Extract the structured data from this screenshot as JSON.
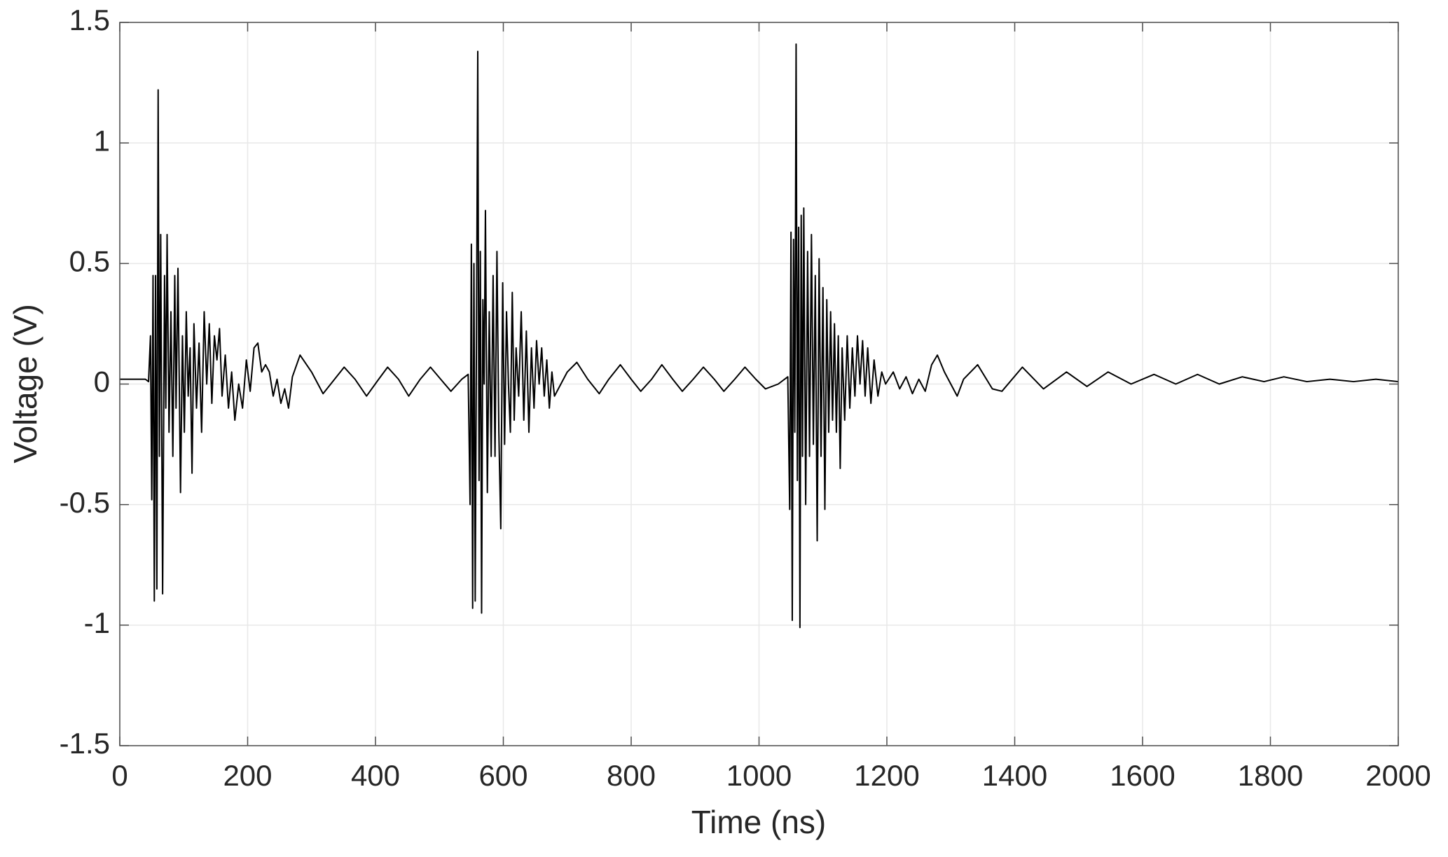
{
  "chart_data": {
    "type": "line",
    "x_label": "Time (ns)",
    "y_label": "Voltage (V)",
    "xlim": [
      0,
      2000
    ],
    "xticks": [
      0,
      200,
      400,
      600,
      800,
      1000,
      1200,
      1400,
      1600,
      1800,
      2000
    ],
    "ylim": [
      -1.5,
      1.5
    ],
    "yticks": [
      -1.5,
      -1,
      -0.5,
      0,
      0.5,
      1,
      1.5
    ],
    "grid": true,
    "color": "#000000",
    "x": [
      0,
      40,
      45,
      48,
      50,
      52,
      54,
      56,
      58,
      60,
      62,
      64,
      67,
      70,
      72,
      74,
      77,
      80,
      83,
      86,
      88,
      91,
      95,
      98,
      101,
      104,
      107,
      110,
      113,
      116,
      120,
      124,
      128,
      132,
      136,
      140,
      144,
      148,
      152,
      156,
      160,
      165,
      170,
      175,
      180,
      186,
      192,
      198,
      204,
      210,
      216,
      222,
      228,
      234,
      240,
      246,
      252,
      258,
      264,
      270,
      282,
      300,
      318,
      330,
      351,
      368,
      386,
      405,
      419,
      436,
      452,
      470,
      486,
      502,
      518,
      535,
      545,
      548,
      550,
      552,
      554,
      556,
      558,
      560,
      562,
      564,
      566,
      568,
      570,
      572,
      575,
      578,
      581,
      584,
      587,
      590,
      593,
      596,
      599,
      602,
      605,
      608,
      611,
      614,
      617,
      620,
      624,
      628,
      632,
      636,
      640,
      644,
      648,
      652,
      656,
      660,
      664,
      668,
      672,
      676,
      680,
      690,
      700,
      715,
      732,
      750,
      765,
      783,
      800,
      815,
      832,
      848,
      865,
      880,
      897,
      913,
      930,
      945,
      962,
      978,
      995,
      1010,
      1030,
      1045,
      1048,
      1050,
      1052,
      1054,
      1056,
      1058,
      1060,
      1062,
      1064,
      1066,
      1068,
      1070,
      1073,
      1076,
      1079,
      1082,
      1085,
      1088,
      1091,
      1094,
      1097,
      1100,
      1103,
      1106,
      1109,
      1112,
      1115,
      1118,
      1121,
      1124,
      1127,
      1130,
      1134,
      1138,
      1142,
      1146,
      1150,
      1154,
      1158,
      1162,
      1166,
      1170,
      1175,
      1180,
      1186,
      1192,
      1198,
      1210,
      1220,
      1230,
      1240,
      1250,
      1260,
      1270,
      1279,
      1290,
      1300,
      1310,
      1320,
      1342,
      1365,
      1380,
      1412,
      1445,
      1481,
      1513,
      1546,
      1582,
      1618,
      1652,
      1686,
      1720,
      1756,
      1790,
      1821,
      1857,
      1893,
      1930,
      1965,
      2000
    ],
    "values": [
      0.02,
      0.02,
      0.01,
      0.2,
      -0.48,
      0.45,
      -0.9,
      0.45,
      -0.85,
      1.22,
      -0.3,
      0.62,
      -0.87,
      0.45,
      -0.1,
      0.62,
      -0.2,
      0.3,
      -0.3,
      0.45,
      -0.1,
      0.48,
      -0.45,
      0.2,
      -0.2,
      0.3,
      -0.05,
      0.15,
      -0.37,
      0.25,
      -0.1,
      0.17,
      -0.2,
      0.3,
      0,
      0.25,
      -0.08,
      0.2,
      0.1,
      0.23,
      -0.05,
      0.12,
      -0.1,
      0.05,
      -0.15,
      0,
      -0.1,
      0.1,
      -0.03,
      0.15,
      0.17,
      0.05,
      0.08,
      0.05,
      -0.05,
      0.02,
      -0.08,
      -0.02,
      -0.1,
      0.03,
      0.12,
      0.05,
      -0.04,
      0,
      0.07,
      0.02,
      -0.05,
      0.02,
      0.07,
      0.02,
      -0.05,
      0.02,
      0.07,
      0.02,
      -0.03,
      0.02,
      0.04,
      -0.5,
      0.58,
      -0.93,
      0.5,
      -0.9,
      0.2,
      1.38,
      -0.4,
      0.55,
      -0.95,
      0.35,
      0,
      0.72,
      -0.45,
      0.3,
      -0.3,
      0.45,
      -0.3,
      0.55,
      -0.2,
      -0.6,
      0.42,
      -0.25,
      0.3,
      0,
      -0.2,
      0.38,
      -0.15,
      0.15,
      -0.05,
      0.3,
      -0.15,
      0.22,
      -0.2,
      0.15,
      -0.1,
      0.18,
      0,
      0.15,
      -0.05,
      0.1,
      -0.1,
      0.05,
      -0.05,
      0,
      0.05,
      0.09,
      0.02,
      -0.04,
      0.02,
      0.08,
      0.02,
      -0.03,
      0.02,
      0.08,
      0.02,
      -0.03,
      0.02,
      0.07,
      0.02,
      -0.03,
      0.02,
      0.07,
      0.02,
      -0.02,
      0,
      0.03,
      -0.52,
      0.63,
      -0.98,
      0.6,
      -0.2,
      1.41,
      -0.4,
      0.65,
      -1.01,
      0.7,
      -0.3,
      0.73,
      -0.5,
      0.55,
      -0.3,
      0.62,
      -0.25,
      0.45,
      -0.65,
      0.52,
      -0.3,
      0.4,
      -0.52,
      0.35,
      -0.2,
      0.3,
      -0.15,
      0.25,
      -0.2,
      0.2,
      -0.35,
      0.15,
      -0.15,
      0.2,
      -0.1,
      0.15,
      -0.05,
      0.2,
      0,
      0.18,
      -0.05,
      0.15,
      -0.08,
      0.1,
      -0.05,
      0.05,
      0,
      0.05,
      -0.02,
      0.03,
      -0.04,
      0.02,
      -0.03,
      0.08,
      0.12,
      0.05,
      0,
      -0.05,
      0.02,
      0.08,
      -0.02,
      -0.03,
      0.07,
      -0.02,
      0.05,
      -0.01,
      0.05,
      0,
      0.04,
      0,
      0.04,
      0,
      0.03,
      0.01,
      0.03,
      0.01,
      0.02,
      0.01,
      0.02,
      0.01
    ]
  }
}
